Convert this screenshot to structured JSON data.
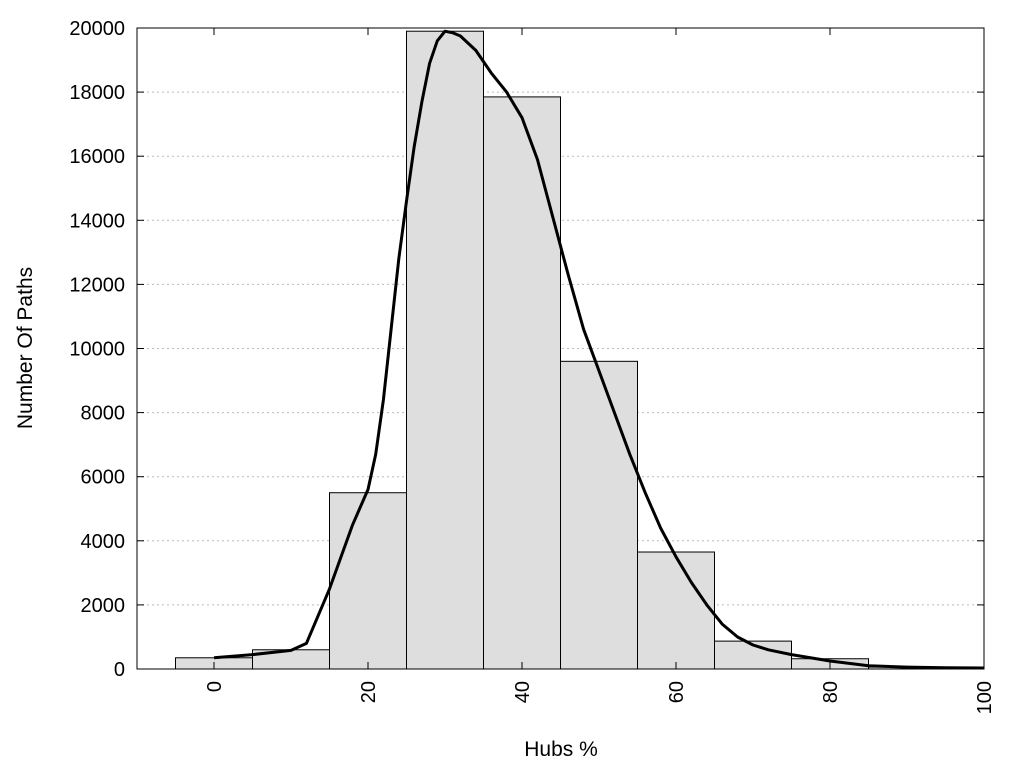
{
  "chart_data": {
    "type": "bar",
    "xlabel": "Hubs %",
    "ylabel": "Number Of Paths",
    "xlim": [
      -10,
      100
    ],
    "ylim": [
      0,
      20000
    ],
    "x_ticks": [
      "0",
      "20",
      "40",
      "60",
      "80",
      "100"
    ],
    "y_ticks": [
      "0",
      "2000",
      "4000",
      "6000",
      "8000",
      "10000",
      "12000",
      "14000",
      "16000",
      "18000",
      "20000"
    ],
    "grid": "horizontal-dotted",
    "bins": [
      {
        "center": 0,
        "width": 10,
        "value": 350
      },
      {
        "center": 10,
        "width": 10,
        "value": 600
      },
      {
        "center": 20,
        "width": 10,
        "value": 5500
      },
      {
        "center": 30,
        "width": 10,
        "value": 19900
      },
      {
        "center": 40,
        "width": 10,
        "value": 17850
      },
      {
        "center": 50,
        "width": 10,
        "value": 9600
      },
      {
        "center": 60,
        "width": 10,
        "value": 3650
      },
      {
        "center": 70,
        "width": 10,
        "value": 870
      },
      {
        "center": 80,
        "width": 10,
        "value": 320
      },
      {
        "center": 90,
        "width": 10,
        "value": 60
      },
      {
        "center": 100,
        "width": 10,
        "value": 40
      }
    ],
    "curve": {
      "x": [
        0,
        5,
        10,
        12,
        15,
        18,
        20,
        21,
        22,
        23,
        24,
        25,
        26,
        27,
        28,
        29,
        30,
        31,
        32,
        34,
        36,
        38,
        40,
        42,
        44,
        46,
        48,
        50,
        52,
        54,
        56,
        58,
        60,
        62,
        64,
        66,
        68,
        70,
        72,
        75,
        80,
        85,
        90,
        95,
        100
      ],
      "y": [
        350,
        450,
        580,
        800,
        2500,
        4500,
        5600,
        6700,
        8400,
        10600,
        12800,
        14600,
        16300,
        17700,
        18900,
        19600,
        19900,
        19850,
        19750,
        19300,
        18600,
        18000,
        17200,
        15900,
        14100,
        12300,
        10600,
        9300,
        8000,
        6700,
        5500,
        4400,
        3500,
        2700,
        2000,
        1400,
        1000,
        750,
        600,
        450,
        250,
        100,
        60,
        40,
        30
      ]
    }
  }
}
